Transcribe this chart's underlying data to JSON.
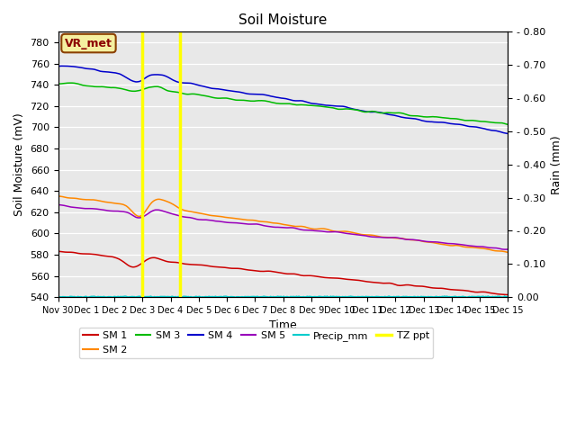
{
  "title": "Soil Moisture",
  "xlabel": "Time",
  "ylabel_left": "Soil Moisture (mV)",
  "ylabel_right": "Rain (mm)",
  "ylim_left": [
    540,
    790
  ],
  "ylim_right": [
    0.0,
    0.8
  ],
  "yticks_left": [
    540,
    560,
    580,
    600,
    620,
    640,
    660,
    680,
    700,
    720,
    740,
    760,
    780
  ],
  "yticks_right_vals": [
    0.0,
    0.1,
    0.2,
    0.3,
    0.4,
    0.5,
    0.6,
    0.7,
    0.8
  ],
  "yticks_right_labels": [
    "0.00",
    "- 0.10",
    "- 0.20",
    "- 0.30",
    "- 0.40",
    "- 0.50",
    "- 0.60",
    "- 0.70",
    "- 0.80"
  ],
  "annotation_text": "VR_met",
  "vline1_day": 3.0,
  "vline2_day": 4.35,
  "bg_color": "#e8e8e8",
  "colors": {
    "SM1": "#cc0000",
    "SM2": "#ff8800",
    "SM3": "#00bb00",
    "SM4": "#0000cc",
    "SM5": "#9900bb",
    "Precip": "#00cccc",
    "TZ": "#ffff00"
  }
}
